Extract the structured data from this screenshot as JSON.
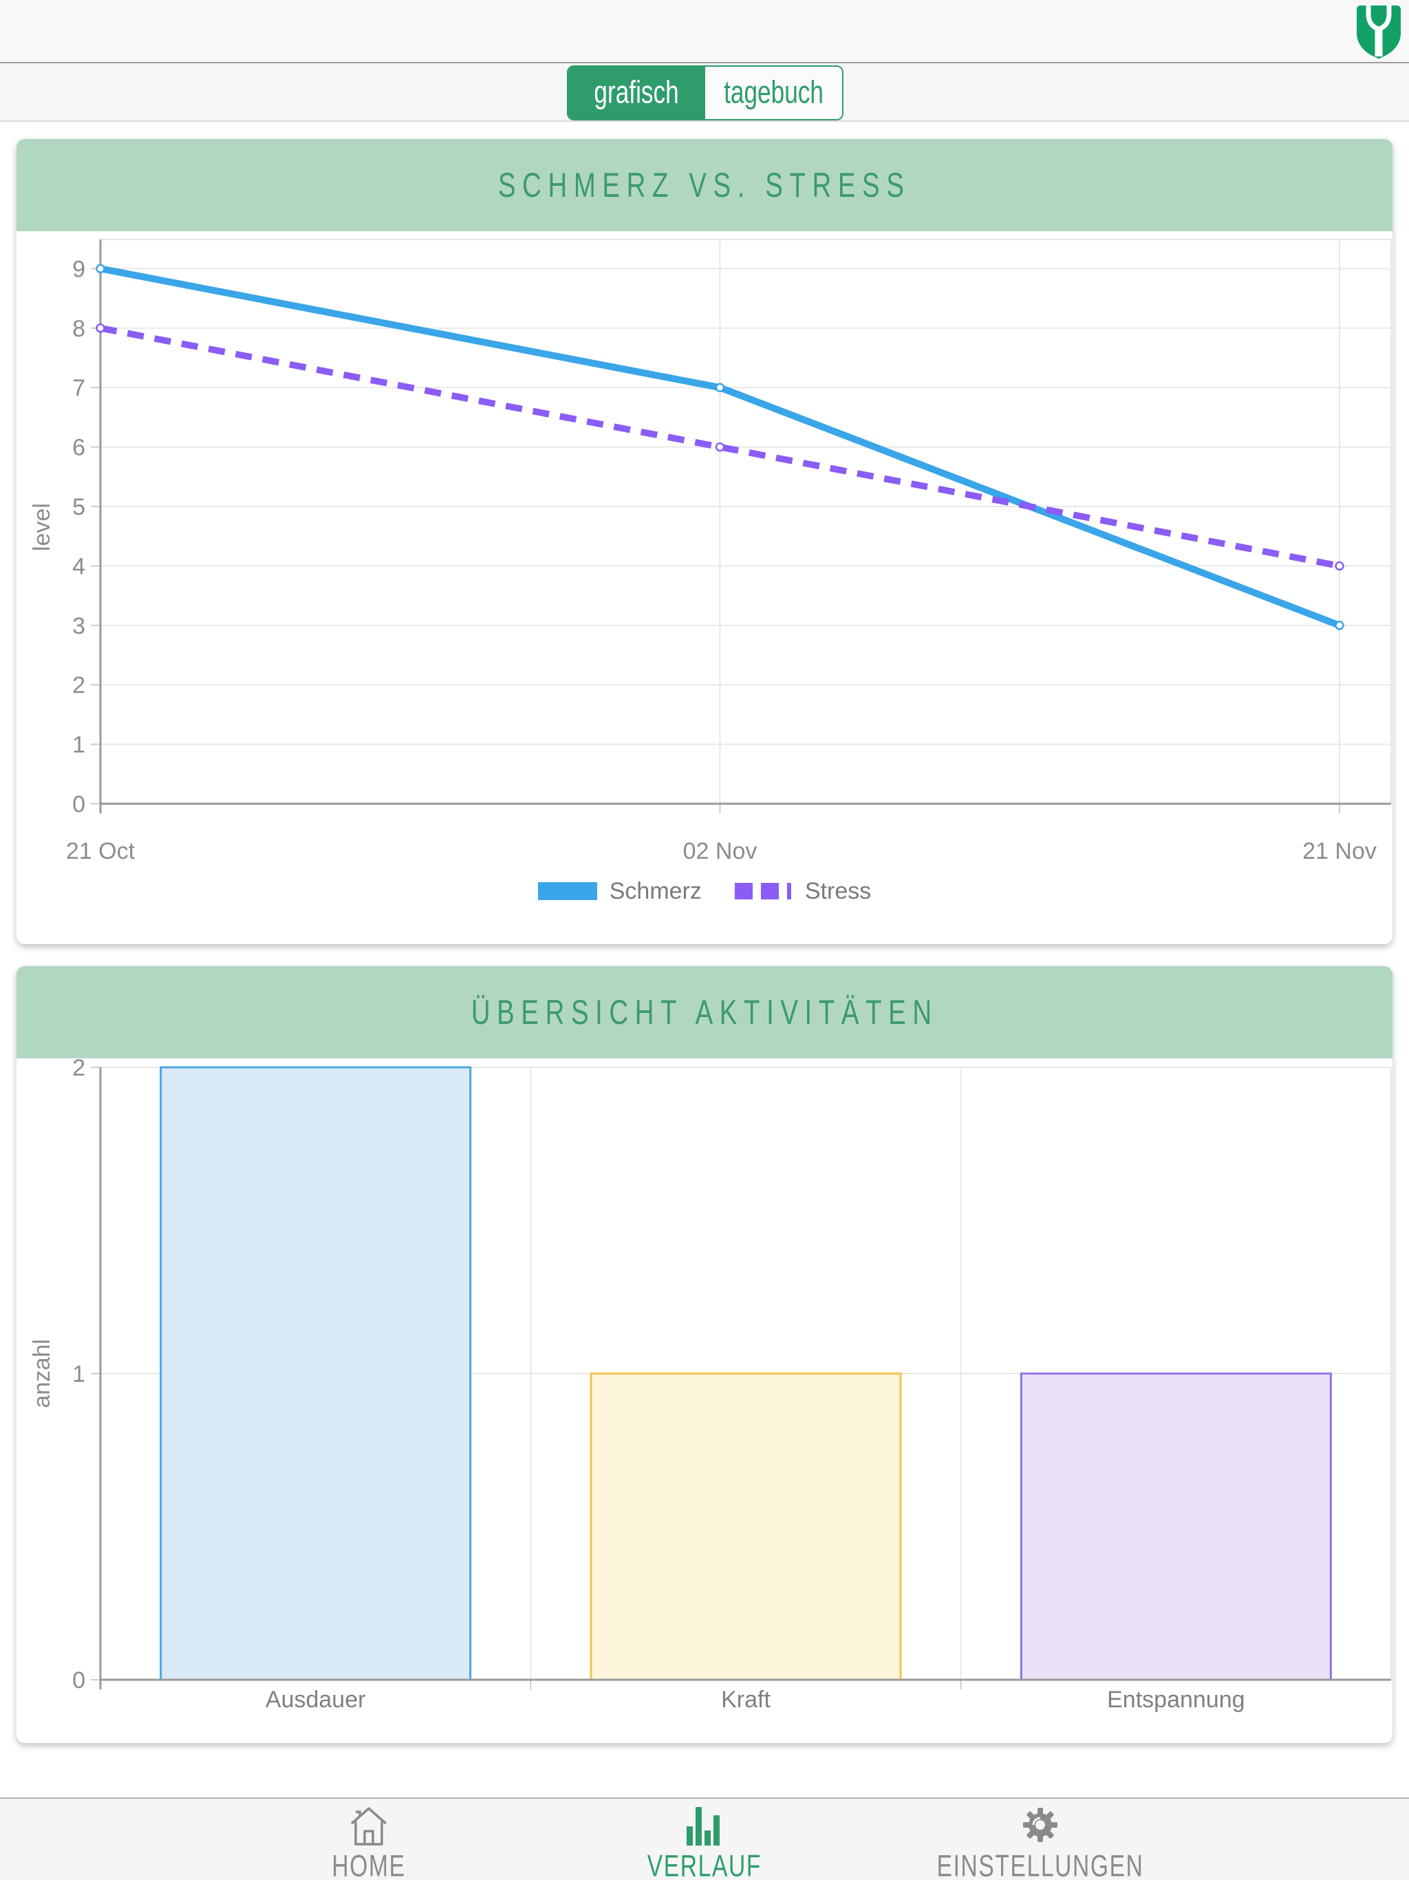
{
  "tabs": [
    {
      "label": "grafisch",
      "active": true
    },
    {
      "label": "tagebuch",
      "active": false
    }
  ],
  "icons": {
    "logo": "shield-fork-logo",
    "home": "house-icon",
    "verlauf": "bar-chart-icon",
    "einstellungen": "gear-icon"
  },
  "colors": {
    "accent_green": "#2e9c6b",
    "header_band_green": "#b1d7c3",
    "title_green": "#3c9a6e",
    "schmerz_blue": "#3aa5e8",
    "stress_purple": "#8b5cf6",
    "axis_gray": "#9a9a9a",
    "grid_gray": "#e8e8e8",
    "tick_text_gray": "#8c8c8c"
  },
  "chart_data": [
    {
      "type": "line",
      "title": "SCHMERZ VS. STRESS",
      "x": [
        "21 Oct",
        "02 Nov",
        "21 Nov"
      ],
      "series": [
        {
          "name": "Schmerz",
          "values": [
            9,
            7,
            3
          ],
          "color": "#3aa5e8",
          "style": "solid"
        },
        {
          "name": "Stress",
          "values": [
            8,
            6,
            4
          ],
          "color": "#8b5cf6",
          "style": "dashed"
        }
      ],
      "xlabel": "",
      "ylabel": "level",
      "ylim": [
        0,
        9
      ],
      "yticks": [
        0,
        1,
        2,
        3,
        4,
        5,
        6,
        7,
        8,
        9
      ],
      "grid": true,
      "legend_position": "bottom"
    },
    {
      "type": "bar",
      "title": "ÜBERSICHT AKTIVITÄTEN",
      "categories": [
        "Ausdauer",
        "Kraft",
        "Entspannung"
      ],
      "values": [
        2,
        1,
        1
      ],
      "bar_fills": [
        "#daeaf8",
        "#fdf5dc",
        "#e8e1f8"
      ],
      "bar_strokes": [
        "#4da5e2",
        "#f0c54d",
        "#9472e0"
      ],
      "xlabel": "",
      "ylabel": "anzahl",
      "ylim": [
        0,
        2
      ],
      "yticks": [
        0,
        1,
        2
      ],
      "grid": true,
      "legend_position": "none"
    }
  ],
  "nav": [
    {
      "label": "HOME",
      "active": false
    },
    {
      "label": "VERLAUF",
      "active": true
    },
    {
      "label": "EINSTELLUNGEN",
      "active": false
    }
  ]
}
